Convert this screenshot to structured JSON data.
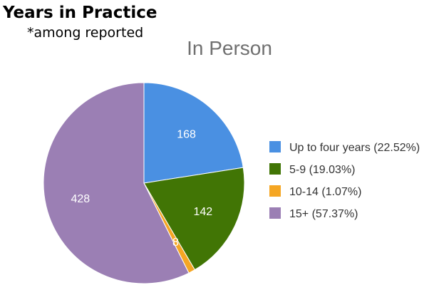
{
  "heading": {
    "title": "Years in Practice",
    "note": "*among reported"
  },
  "chart_data": {
    "type": "pie",
    "title": "In Person",
    "categories": [
      "Up to four years",
      "5-9",
      "10-14",
      "15+"
    ],
    "values": [
      168,
      142,
      8,
      428
    ],
    "percent_labels": [
      "22.52%",
      "19.03%",
      "1.07%",
      "57.37%"
    ],
    "legend_labels": [
      "Up to four years (22.52%)",
      "5-9 (19.03%)",
      "10-14 (1.07%)",
      "15+ (57.37%)"
    ],
    "colors": [
      "#4a90e2",
      "#417505",
      "#f5a623",
      "#9b7fb4"
    ],
    "start": "top",
    "direction": "clockwise",
    "legend_position": "right"
  }
}
